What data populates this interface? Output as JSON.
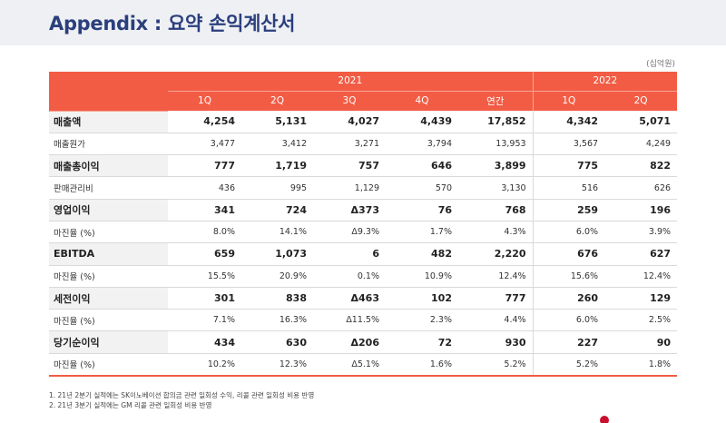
{
  "title": "Appendix : 요약 손익계산서",
  "unit": "(십억원)",
  "years": {
    "y2021": "2021",
    "y2022": "2022"
  },
  "columns": [
    "1Q",
    "2Q",
    "3Q",
    "4Q",
    "연간",
    "1Q",
    "2Q"
  ],
  "rows": [
    {
      "label": "매출액",
      "type": "major",
      "values": [
        "4,254",
        "5,131",
        "4,027",
        "4,439",
        "17,852",
        "4,342",
        "5,071"
      ]
    },
    {
      "label": "매출원가",
      "type": "minor",
      "values": [
        "3,477",
        "3,412",
        "3,271",
        "3,794",
        "13,953",
        "3,567",
        "4,249"
      ]
    },
    {
      "label": "매출총이익",
      "type": "major",
      "values": [
        "777",
        "1,719",
        "757",
        "646",
        "3,899",
        "775",
        "822"
      ]
    },
    {
      "label": "판매관리비",
      "type": "minor",
      "values": [
        "436",
        "995",
        "1,129",
        "570",
        "3,130",
        "516",
        "626"
      ]
    },
    {
      "label": "영업이익",
      "type": "major",
      "values": [
        "341",
        "724",
        "Δ373",
        "76",
        "768",
        "259",
        "196"
      ]
    },
    {
      "label": "마진율 (%)",
      "type": "minor",
      "values": [
        "8.0%",
        "14.1%",
        "Δ9.3%",
        "1.7%",
        "4.3%",
        "6.0%",
        "3.9%"
      ]
    },
    {
      "label": "EBITDA",
      "type": "major",
      "values": [
        "659",
        "1,073",
        "6",
        "482",
        "2,220",
        "676",
        "627"
      ]
    },
    {
      "label": "마진율 (%)",
      "type": "minor",
      "values": [
        "15.5%",
        "20.9%",
        "0.1%",
        "10.9%",
        "12.4%",
        "15.6%",
        "12.4%"
      ]
    },
    {
      "label": "세전이익",
      "type": "major",
      "values": [
        "301",
        "838",
        "Δ463",
        "102",
        "777",
        "260",
        "129"
      ]
    },
    {
      "label": "마진율 (%)",
      "type": "minor",
      "values": [
        "7.1%",
        "16.3%",
        "Δ11.5%",
        "2.3%",
        "4.4%",
        "6.0%",
        "2.5%"
      ]
    },
    {
      "label": "당기순이익",
      "type": "major",
      "values": [
        "434",
        "630",
        "Δ206",
        "72",
        "930",
        "227",
        "90"
      ]
    },
    {
      "label": "마진율 (%)",
      "type": "minor",
      "values": [
        "10.2%",
        "12.3%",
        "Δ5.1%",
        "1.6%",
        "5.2%",
        "5.2%",
        "1.8%"
      ]
    }
  ],
  "footnotes": [
    "1. 21년 2분기 실적에는 SK이노베이션 합의금 관련 일회성 수익, 리콜 관련 일회성 비용 반영",
    "2. 21년 3분기 실적에는 GM 리콜 관련 일회성 비용 반영"
  ],
  "colors": {
    "accent": "#f25c45",
    "title": "#2b3f7d"
  }
}
